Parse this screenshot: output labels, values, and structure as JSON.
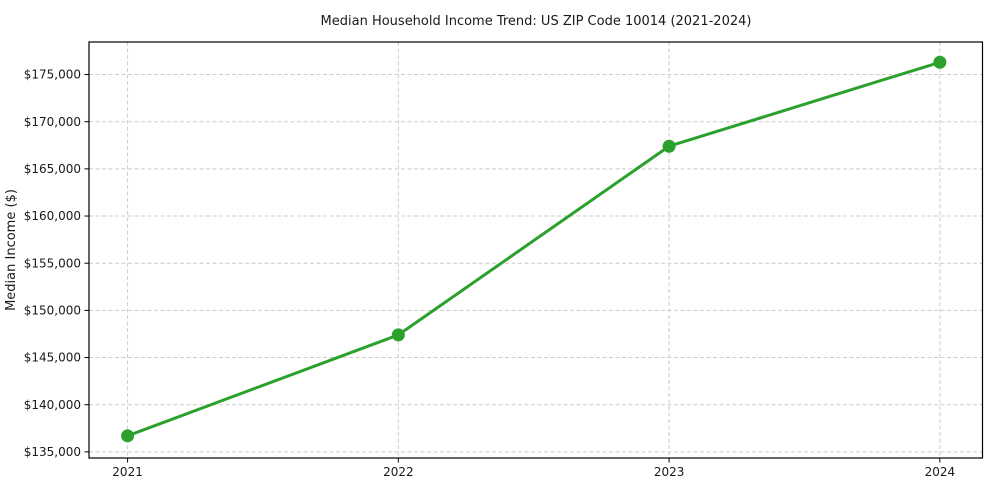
{
  "figure": {
    "title": "Median Household Income Trend: US ZIP Code 10014 (2021-2024)",
    "y_axis_label": "Median Income ($)"
  },
  "chart_data": {
    "type": "line",
    "title": "Median Household Income Trend: US ZIP Code 10014 (2021-2024)",
    "xlabel": "",
    "ylabel": "Median Income ($)",
    "x": [
      2021,
      2022,
      2023,
      2024
    ],
    "x_tick_labels": [
      "2021",
      "2022",
      "2023",
      "2024"
    ],
    "series": [
      {
        "name": "Median Income",
        "values": [
          136700,
          147400,
          167400,
          176300
        ],
        "color": "#2ca02c",
        "marker": "circle"
      }
    ],
    "y_ticks": [
      135000,
      140000,
      145000,
      150000,
      155000,
      160000,
      165000,
      170000,
      175000
    ],
    "y_tick_labels": [
      "$135,000",
      "$140,000",
      "$145,000",
      "$150,000",
      "$155,000",
      "$160,000",
      "$165,000",
      "$170,000",
      "$175,000"
    ],
    "xlim": [
      2020.8575,
      2024.1575
    ],
    "ylim": [
      134350,
      178450
    ],
    "grid": true,
    "grid_style": "dashed",
    "legend": false
  },
  "colors": {
    "line": "#2ca02c",
    "grid": "#cccccc",
    "axis": "#000000",
    "background": "#ffffff",
    "text": "#1a1a1a"
  }
}
